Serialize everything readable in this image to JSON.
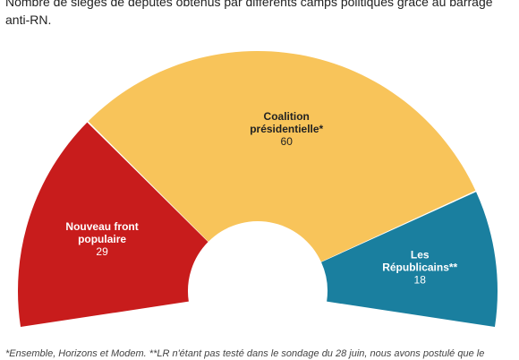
{
  "chart_data": {
    "type": "pie",
    "subtitle": "Nombre de sièges de députés obtenus par différents camps politiques grâce au barrage anti-RN.",
    "footnote": "*Ensemble, Horizons et Modem. **LR n'étant pas testé dans le sondage du 28 juin, nous avons postulé que le",
    "series": [
      {
        "label_lines": [
          "Nouveau front",
          "populaire"
        ],
        "value": 29,
        "color": "#c81c1c"
      },
      {
        "label_lines": [
          "Coalition",
          "présidentielle*"
        ],
        "value": 60,
        "color": "#f8c45a"
      },
      {
        "label_lines": [
          "Les",
          "Républicains**"
        ],
        "value": 18,
        "color": "#1a7f9f"
      }
    ]
  }
}
